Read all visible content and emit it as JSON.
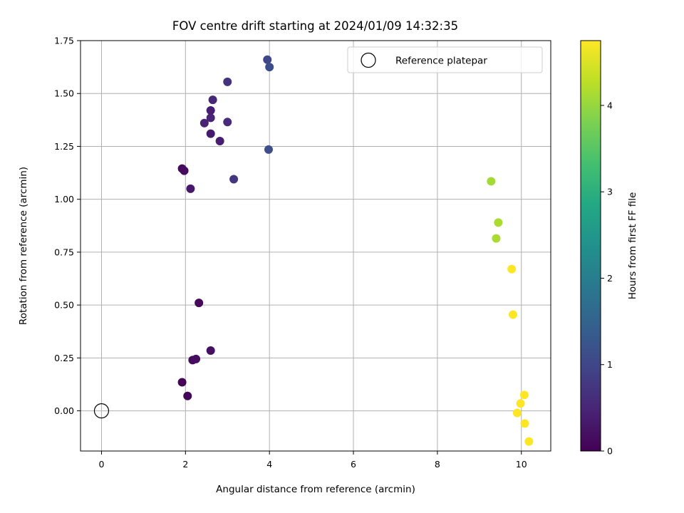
{
  "chart_data": {
    "type": "scatter",
    "title": "FOV centre drift starting at 2024/01/09 14:32:35",
    "xlabel": "Angular distance from reference (arcmin)",
    "ylabel": "Rotation from reference (arcmin)",
    "xlim": [
      -0.5,
      10.7
    ],
    "ylim": [
      -0.19,
      1.75
    ],
    "x_ticks": [
      0,
      2,
      4,
      6,
      8,
      10
    ],
    "y_ticks": [
      0.0,
      0.25,
      0.5,
      0.75,
      1.0,
      1.25,
      1.5,
      1.75
    ],
    "x_tick_labels": [
      "0",
      "2",
      "4",
      "6",
      "8",
      "10"
    ],
    "y_tick_labels": [
      "0.00",
      "0.25",
      "0.50",
      "0.75",
      "1.00",
      "1.25",
      "1.50",
      "1.75"
    ],
    "grid": true,
    "legend": {
      "position": "top-right",
      "entries": [
        "Reference platepar"
      ]
    },
    "reference_point": {
      "x": 0.0,
      "y": 0.0,
      "label": "Reference platepar"
    },
    "colorbar": {
      "label": "Hours from first FF file",
      "colormap": "viridis",
      "range": [
        0,
        4.75
      ],
      "ticks": [
        0,
        1,
        2,
        3,
        4
      ],
      "tick_labels": [
        "0",
        "1",
        "2",
        "3",
        "4"
      ]
    },
    "points": [
      {
        "x": 1.92,
        "y": 0.135,
        "hours": 0.05
      },
      {
        "x": 2.05,
        "y": 0.07,
        "hours": 0.08
      },
      {
        "x": 2.17,
        "y": 0.24,
        "hours": 0.15
      },
      {
        "x": 2.25,
        "y": 0.245,
        "hours": 0.17
      },
      {
        "x": 2.32,
        "y": 0.51,
        "hours": 0.1
      },
      {
        "x": 2.6,
        "y": 0.285,
        "hours": 0.2
      },
      {
        "x": 1.92,
        "y": 1.145,
        "hours": 0.12
      },
      {
        "x": 1.97,
        "y": 1.135,
        "hours": 0.15
      },
      {
        "x": 2.12,
        "y": 1.05,
        "hours": 0.3
      },
      {
        "x": 2.45,
        "y": 1.36,
        "hours": 0.45
      },
      {
        "x": 2.6,
        "y": 1.385,
        "hours": 0.5
      },
      {
        "x": 2.6,
        "y": 1.42,
        "hours": 0.4
      },
      {
        "x": 2.65,
        "y": 1.47,
        "hours": 0.55
      },
      {
        "x": 2.6,
        "y": 1.31,
        "hours": 0.35
      },
      {
        "x": 2.82,
        "y": 1.275,
        "hours": 0.4
      },
      {
        "x": 3.0,
        "y": 1.555,
        "hours": 0.7
      },
      {
        "x": 3.0,
        "y": 1.365,
        "hours": 0.6
      },
      {
        "x": 3.15,
        "y": 1.095,
        "hours": 0.75
      },
      {
        "x": 3.95,
        "y": 1.66,
        "hours": 1.0
      },
      {
        "x": 4.0,
        "y": 1.625,
        "hours": 1.1
      },
      {
        "x": 3.98,
        "y": 1.235,
        "hours": 1.15
      },
      {
        "x": 9.28,
        "y": 1.085,
        "hours": 4.1
      },
      {
        "x": 9.45,
        "y": 0.89,
        "hours": 4.15
      },
      {
        "x": 9.4,
        "y": 0.815,
        "hours": 4.15
      },
      {
        "x": 9.77,
        "y": 0.67,
        "hours": 4.75
      },
      {
        "x": 9.8,
        "y": 0.455,
        "hours": 4.75
      },
      {
        "x": 10.07,
        "y": 0.075,
        "hours": 4.75
      },
      {
        "x": 9.98,
        "y": 0.035,
        "hours": 4.75
      },
      {
        "x": 9.9,
        "y": -0.01,
        "hours": 4.75
      },
      {
        "x": 10.08,
        "y": -0.06,
        "hours": 4.75
      },
      {
        "x": 10.18,
        "y": -0.145,
        "hours": 4.75
      }
    ]
  }
}
